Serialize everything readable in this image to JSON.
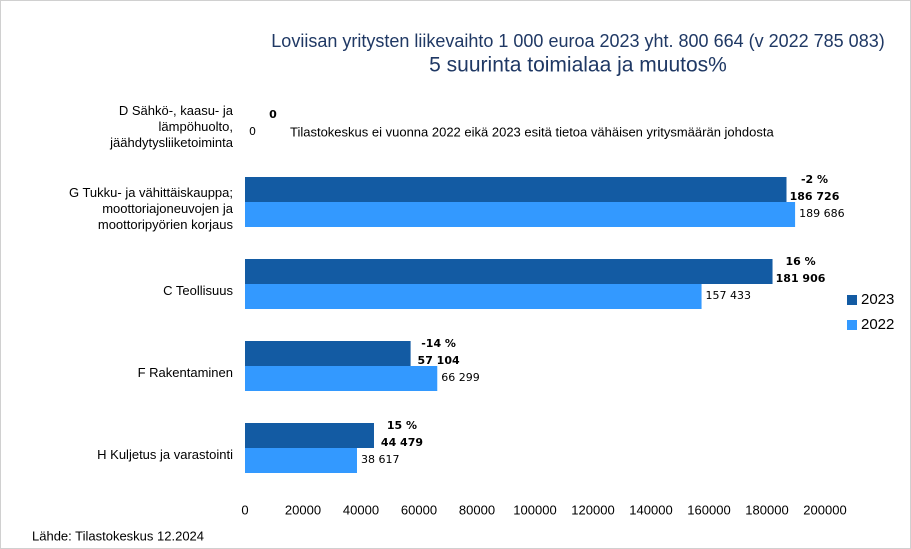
{
  "chart_data": {
    "type": "bar",
    "orientation": "horizontal",
    "title": "Loviisan yritysten liikevaihto 1 000 euroa 2023 yht. 800 664 (v 2022 785 083)",
    "subtitle": "5 suurinta toimialaa ja muutos%",
    "categories": [
      "D Sähkö-, kaasu- ja\nlämpöhuolto,\njäähdytysliiketoiminta",
      "G Tukku- ja vähittäiskauppa;\nmoottoriajoneuvojen ja\nmoottoripyörien korjaus",
      "C Teollisuus",
      "F Rakentaminen",
      "H Kuljetus ja varastointi"
    ],
    "series": [
      {
        "name": "2023",
        "color": "#135ba3",
        "values": [
          0,
          186726,
          181906,
          57104,
          44479
        ],
        "value_labels": [
          "0",
          "186 726",
          "181 906",
          "57 104",
          "44 479"
        ]
      },
      {
        "name": "2022",
        "color": "#3399ff",
        "values": [
          0,
          189686,
          157433,
          66299,
          38617
        ],
        "value_labels": [
          "0",
          "189 686",
          "157 433",
          "66 299",
          "38 617"
        ]
      }
    ],
    "change_labels": [
      null,
      "-2 %",
      "16 %",
      "-14 %",
      "15 %"
    ],
    "annotation": "Tilastokeskus ei vuonna 2022 eikä 2023 esitä tietoa vähäisen yritysmäärän johdosta",
    "source": "Lähde: Tilastokeskus 12.2024",
    "xlim": [
      0,
      200000
    ],
    "xticks": [
      0,
      20000,
      40000,
      60000,
      80000,
      100000,
      120000,
      140000,
      160000,
      180000,
      200000
    ],
    "grid": false,
    "legend": "right"
  }
}
